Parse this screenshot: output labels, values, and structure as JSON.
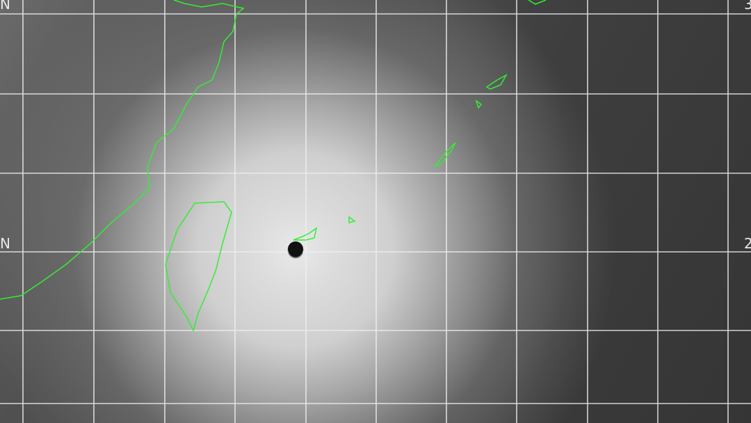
{
  "map": {
    "type": "infrared satellite imagery",
    "labels": {
      "left_top": "N",
      "left_mid": "N",
      "right_top": "3",
      "right_mid": "2"
    },
    "colors": {
      "coastline": "#33ee33",
      "grid": "#f0f0f0",
      "cloud": "#dcdcdc",
      "background": "#3a3a3a"
    },
    "features": [
      "typhoon-eye",
      "coastlines",
      "lat-lon-grid"
    ]
  }
}
